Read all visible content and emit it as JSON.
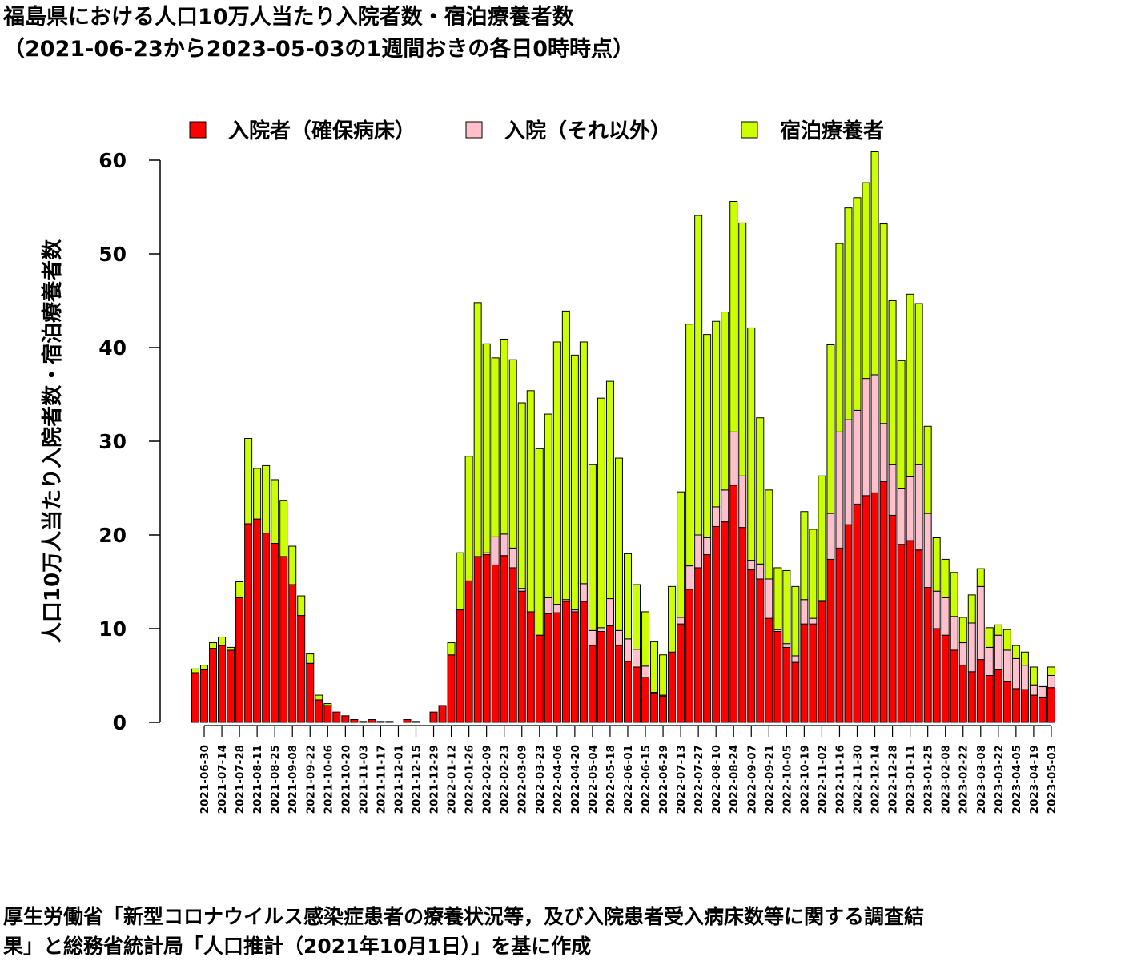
{
  "chart_data": {
    "type": "stacked_bar",
    "title": "福島県における人口10万人当たり入院者数・宿泊療養者数",
    "subtitle": "（2021-06-23から2023-05-03の1週間おきの各日0時時点）",
    "y_label": "人口10万人当たり入院者数・宿泊療養者数",
    "caption": [
      "厚生労働省「新型コロナウイルス感染症患者の療養状況等，及び入院患者受入病床数等に関する調査結",
      "果」と総務省統計局「人口推計（2021年10月1日）」を基に作成"
    ],
    "categories": [
      null,
      "2021-06-30",
      null,
      "2021-07-14",
      null,
      "2021-07-28",
      null,
      "2021-08-11",
      null,
      "2021-08-25",
      null,
      "2021-09-08",
      null,
      "2021-09-22",
      null,
      "2021-10-06",
      null,
      "2021-10-20",
      null,
      "2021-11-03",
      null,
      "2021-11-17",
      null,
      "2021-12-01",
      null,
      "2021-12-15",
      null,
      "2021-12-29",
      null,
      "2022-01-12",
      null,
      "2022-01-26",
      null,
      "2022-02-09",
      null,
      "2022-02-23",
      null,
      "2022-03-09",
      null,
      "2022-03-23",
      null,
      "2022-04-06",
      null,
      "2022-04-20",
      null,
      "2022-05-04",
      null,
      "2022-05-18",
      null,
      "2022-06-01",
      null,
      "2022-06-15",
      null,
      "2022-06-29",
      null,
      "2022-07-13",
      null,
      "2022-07-27",
      null,
      "2022-08-10",
      null,
      "2022-08-24",
      null,
      "2022-09-07",
      null,
      "2022-09-21",
      null,
      "2022-10-05",
      null,
      "2022-10-19",
      null,
      "2022-11-02",
      null,
      "2022-11-16",
      null,
      "2022-11-30",
      null,
      "2022-12-14",
      null,
      "2022-12-28",
      null,
      "2023-01-11",
      null,
      "2023-01-25",
      null,
      "2023-02-08",
      null,
      "2023-02-22",
      null,
      "2023-03-08",
      null,
      "2023-03-22",
      null,
      "2023-04-05",
      null,
      "2023-04-19",
      null,
      "2023-05-03"
    ],
    "series": [
      {
        "name": "入院者（確保病床）",
        "color": "#ff0000",
        "values": [
          5.3,
          5.6,
          7.9,
          8.2,
          7.7,
          13.3,
          21.2,
          21.7,
          20.2,
          19.1,
          17.7,
          14.7,
          11.4,
          6.3,
          2.4,
          1.8,
          1.1,
          0.7,
          0.3,
          0.1,
          0.3,
          0.1,
          0.1,
          0,
          0.3,
          0.1,
          0,
          1.1,
          1.8,
          7.2,
          12.0,
          15.1,
          17.7,
          17.9,
          16.8,
          17.8,
          16.5,
          14.0,
          11.8,
          9.3,
          11.6,
          11.7,
          12.9,
          11.8,
          12.9,
          8.2,
          9.7,
          10.3,
          8.2,
          6.5,
          5.9,
          4.8,
          3.1,
          2.8,
          7.4,
          10.5,
          14.2,
          16.5,
          17.9,
          20.9,
          21.4,
          25.3,
          20.8,
          16.3,
          15.3,
          11.1,
          9.7,
          8.0,
          6.4,
          10.5,
          10.5,
          12.9,
          17.4,
          18.6,
          21.1,
          23.3,
          24.2,
          24.5,
          25.7,
          22.1,
          19.0,
          19.4,
          18.4,
          14.4,
          10.0,
          9.3,
          7.7,
          6.1,
          5.4,
          6.7,
          5.0,
          5.6,
          4.4,
          3.6,
          3.5,
          2.9,
          2.7,
          3.7
        ]
      },
      {
        "name": "入院（それ以外）",
        "color": "#ffc0cb",
        "values": [
          0,
          0,
          0,
          0,
          0,
          0,
          0,
          0,
          0,
          0,
          0,
          0,
          0,
          0,
          0,
          0,
          0,
          0,
          0,
          0,
          0,
          0,
          0,
          0,
          0,
          0,
          0,
          0,
          0,
          0,
          0,
          0,
          0,
          0.2,
          3.0,
          2.3,
          2.1,
          0.3,
          0,
          0,
          1.7,
          0.9,
          0.2,
          0.2,
          1.9,
          1.6,
          0.4,
          2.9,
          1.6,
          2.4,
          1.9,
          1.2,
          0.1,
          0.1,
          0.1,
          0.7,
          2.5,
          3.5,
          1.8,
          2.1,
          3.4,
          5.7,
          5.5,
          1.0,
          1.6,
          4.2,
          0.2,
          0.4,
          0.7,
          2.6,
          0.6,
          0.1,
          4.9,
          12.4,
          11.2,
          10.0,
          12.5,
          12.6,
          6.2,
          5.4,
          6.0,
          6.8,
          9.1,
          7.9,
          4.0,
          4.0,
          3.6,
          2.4,
          5.2,
          7.8,
          3.0,
          3.7,
          3.3,
          3.2,
          2.6,
          1.1,
          1.1,
          1.3
        ]
      },
      {
        "name": "宿泊療養者",
        "color": "#ccff00",
        "values": [
          0.4,
          0.5,
          0.6,
          0.9,
          0.3,
          1.7,
          9.1,
          5.4,
          7.2,
          6.8,
          6.0,
          4.1,
          2.1,
          1.0,
          0.5,
          0.2,
          0,
          0,
          0,
          0,
          0,
          0,
          0,
          0,
          0,
          0,
          0,
          0,
          0,
          1.3,
          6.1,
          13.3,
          27.1,
          22.3,
          19.1,
          20.8,
          20.1,
          19.8,
          23.6,
          19.9,
          19.6,
          28.0,
          30.8,
          27.2,
          25.8,
          17.7,
          24.5,
          23.2,
          18.4,
          9.1,
          6.9,
          5.8,
          5.4,
          4.3,
          7.0,
          13.4,
          25.8,
          34.1,
          21.7,
          19.8,
          19.0,
          24.6,
          27.0,
          24.8,
          15.6,
          9.5,
          6.6,
          7.8,
          7.4,
          9.4,
          9.5,
          13.3,
          18.0,
          20.1,
          22.6,
          22.7,
          20.9,
          23.8,
          21.3,
          17.5,
          13.6,
          19.5,
          17.2,
          9.3,
          5.7,
          4.1,
          4.7,
          2.7,
          3.0,
          1.9,
          2.1,
          1.1,
          2.2,
          1.4,
          1.4,
          1.9,
          0.1,
          0.9
        ]
      }
    ],
    "ylim": [
      0,
      60
    ],
    "yticks": [
      0,
      10,
      20,
      30,
      40,
      50,
      60
    ],
    "legend": "top"
  }
}
